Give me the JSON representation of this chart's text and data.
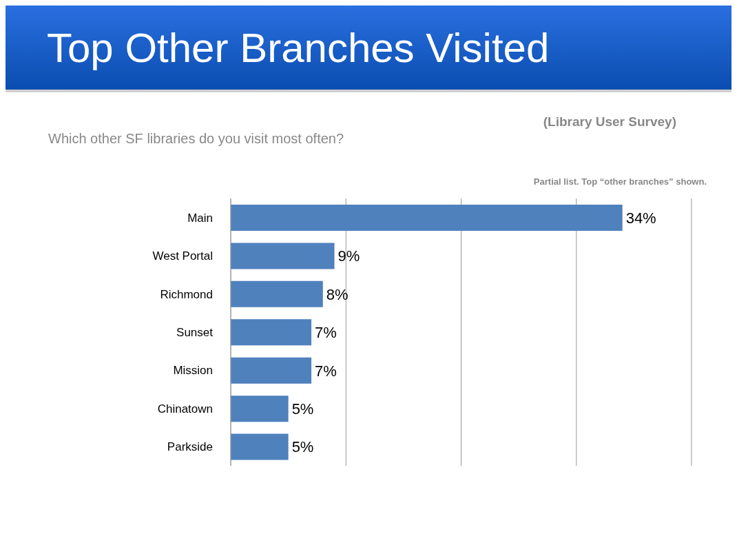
{
  "chart_data": {
    "type": "bar",
    "orientation": "horizontal",
    "title": "Top Other Branches Visited",
    "subtitle": "Which other SF libraries do you visit most often?",
    "annotations": [
      "(Library User Survey)",
      "Partial list. Top “other branches” shown."
    ],
    "categories": [
      "Main",
      "West Portal",
      "Richmond",
      "Sunset",
      "Mission",
      "Chinatown",
      "Parkside"
    ],
    "values": [
      34,
      9,
      8,
      7,
      7,
      5,
      5
    ],
    "value_labels": [
      "34%",
      "9%",
      "8%",
      "7%",
      "7%",
      "5%",
      "5%"
    ],
    "color": "#4f81bd",
    "xlim": [
      0,
      40
    ],
    "xticks": [
      {
        "value": 0,
        "label": null
      },
      {
        "value": 10,
        "label": null
      },
      {
        "value": 20,
        "label": null
      },
      {
        "value": 30,
        "label": null
      },
      {
        "value": 40,
        "label": null
      }
    ],
    "tick_labels": "y",
    "grid": "x"
  }
}
